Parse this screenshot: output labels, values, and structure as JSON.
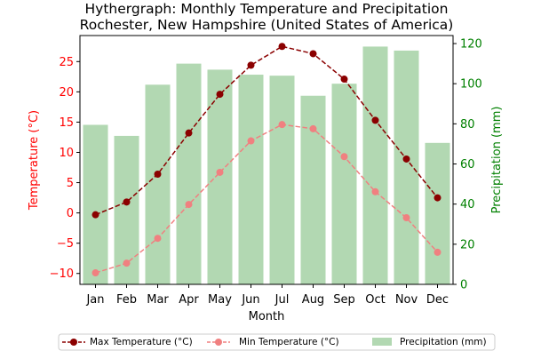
{
  "chart_data": {
    "type": "bar+line",
    "title": "Hythergraph: Monthly Temperature and Precipitation",
    "subtitle": "Rochester, New Hampshire (United States of America)",
    "xlabel": "Month",
    "ylabel_left": "Temperature (°C)",
    "ylabel_right": "Precipitation (mm)",
    "categories": [
      "Jan",
      "Feb",
      "Mar",
      "Apr",
      "May",
      "Jun",
      "Jul",
      "Aug",
      "Sep",
      "Oct",
      "Nov",
      "Dec"
    ],
    "ylim_left": [
      -11.8,
      29.3
    ],
    "ylim_right": [
      0,
      124
    ],
    "yticks_left": [
      -10,
      -5,
      0,
      5,
      10,
      15,
      20,
      25
    ],
    "yticks_right": [
      0,
      20,
      40,
      60,
      80,
      100,
      120
    ],
    "grid": false,
    "legend_placement": "bottom-center",
    "series": [
      {
        "name": "Max Temperature (°C)",
        "kind": "line",
        "axis": "left",
        "color": "#8b0000",
        "linestyle": "dashed",
        "values": [
          -0.3,
          1.8,
          6.4,
          13.2,
          19.6,
          24.4,
          27.5,
          26.3,
          22.1,
          15.3,
          8.9,
          2.5
        ]
      },
      {
        "name": "Min Temperature (°C)",
        "kind": "line",
        "axis": "left",
        "color": "#f08080",
        "linestyle": "dashed",
        "values": [
          -9.9,
          -8.3,
          -4.2,
          1.4,
          6.7,
          11.9,
          14.6,
          13.9,
          9.3,
          3.5,
          -0.8,
          -6.5
        ]
      },
      {
        "name": "Precipitation (mm)",
        "kind": "bar",
        "axis": "right",
        "color": "#b2d8b2",
        "values": [
          79.5,
          74.0,
          99.5,
          110.0,
          107.0,
          104.5,
          104.0,
          94.0,
          100.0,
          118.5,
          116.5,
          70.5
        ]
      }
    ],
    "colors": {
      "left_axis": "#ff0000",
      "right_axis": "#008000"
    }
  }
}
